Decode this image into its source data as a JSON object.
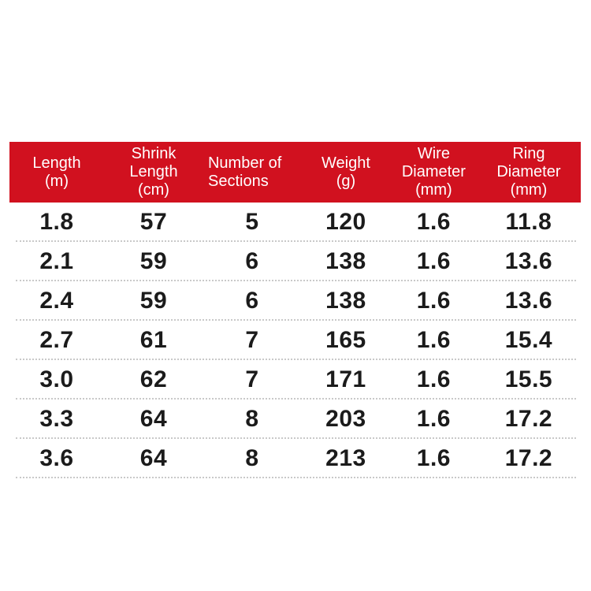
{
  "colors": {
    "header_red": "#d1111f",
    "header_text": "#ffffff",
    "row_text": "#1b1b1b",
    "separator": "#c9c9c9"
  },
  "table": {
    "columns": [
      {
        "id": "length",
        "label": "Length\n(m)"
      },
      {
        "id": "shrink_length",
        "label": "Shrink\nLength\n(cm)"
      },
      {
        "id": "sections",
        "label": "Number of\nSections"
      },
      {
        "id": "weight",
        "label": "Weight\n(g)"
      },
      {
        "id": "wire_diameter",
        "label": "Wire\nDiameter\n(mm)"
      },
      {
        "id": "ring_diameter",
        "label": "Ring\nDiameter\n(mm)"
      }
    ],
    "rows": [
      [
        "1.8",
        "57",
        "5",
        "120",
        "1.6",
        "11.8"
      ],
      [
        "2.1",
        "59",
        "6",
        "138",
        "1.6",
        "13.6"
      ],
      [
        "2.4",
        "59",
        "6",
        "138",
        "1.6",
        "13.6"
      ],
      [
        "2.7",
        "61",
        "7",
        "165",
        "1.6",
        "15.4"
      ],
      [
        "3.0",
        "62",
        "7",
        "171",
        "1.6",
        "15.5"
      ],
      [
        "3.3",
        "64",
        "8",
        "203",
        "1.6",
        "17.2"
      ],
      [
        "3.6",
        "64",
        "8",
        "213",
        "1.6",
        "17.2"
      ]
    ]
  },
  "chart_data": {
    "type": "table",
    "title": "",
    "columns": [
      "Length (m)",
      "Shrink Length (cm)",
      "Number of Sections",
      "Weight (g)",
      "Wire Diameter (mm)",
      "Ring Diameter (mm)"
    ],
    "rows": [
      [
        1.8,
        57,
        5,
        120,
        1.6,
        11.8
      ],
      [
        2.1,
        59,
        6,
        138,
        1.6,
        13.6
      ],
      [
        2.4,
        59,
        6,
        138,
        1.6,
        13.6
      ],
      [
        2.7,
        61,
        7,
        165,
        1.6,
        15.4
      ],
      [
        3.0,
        62,
        7,
        171,
        1.6,
        15.5
      ],
      [
        3.3,
        64,
        8,
        203,
        1.6,
        17.2
      ],
      [
        3.6,
        64,
        8,
        213,
        1.6,
        17.2
      ]
    ]
  }
}
